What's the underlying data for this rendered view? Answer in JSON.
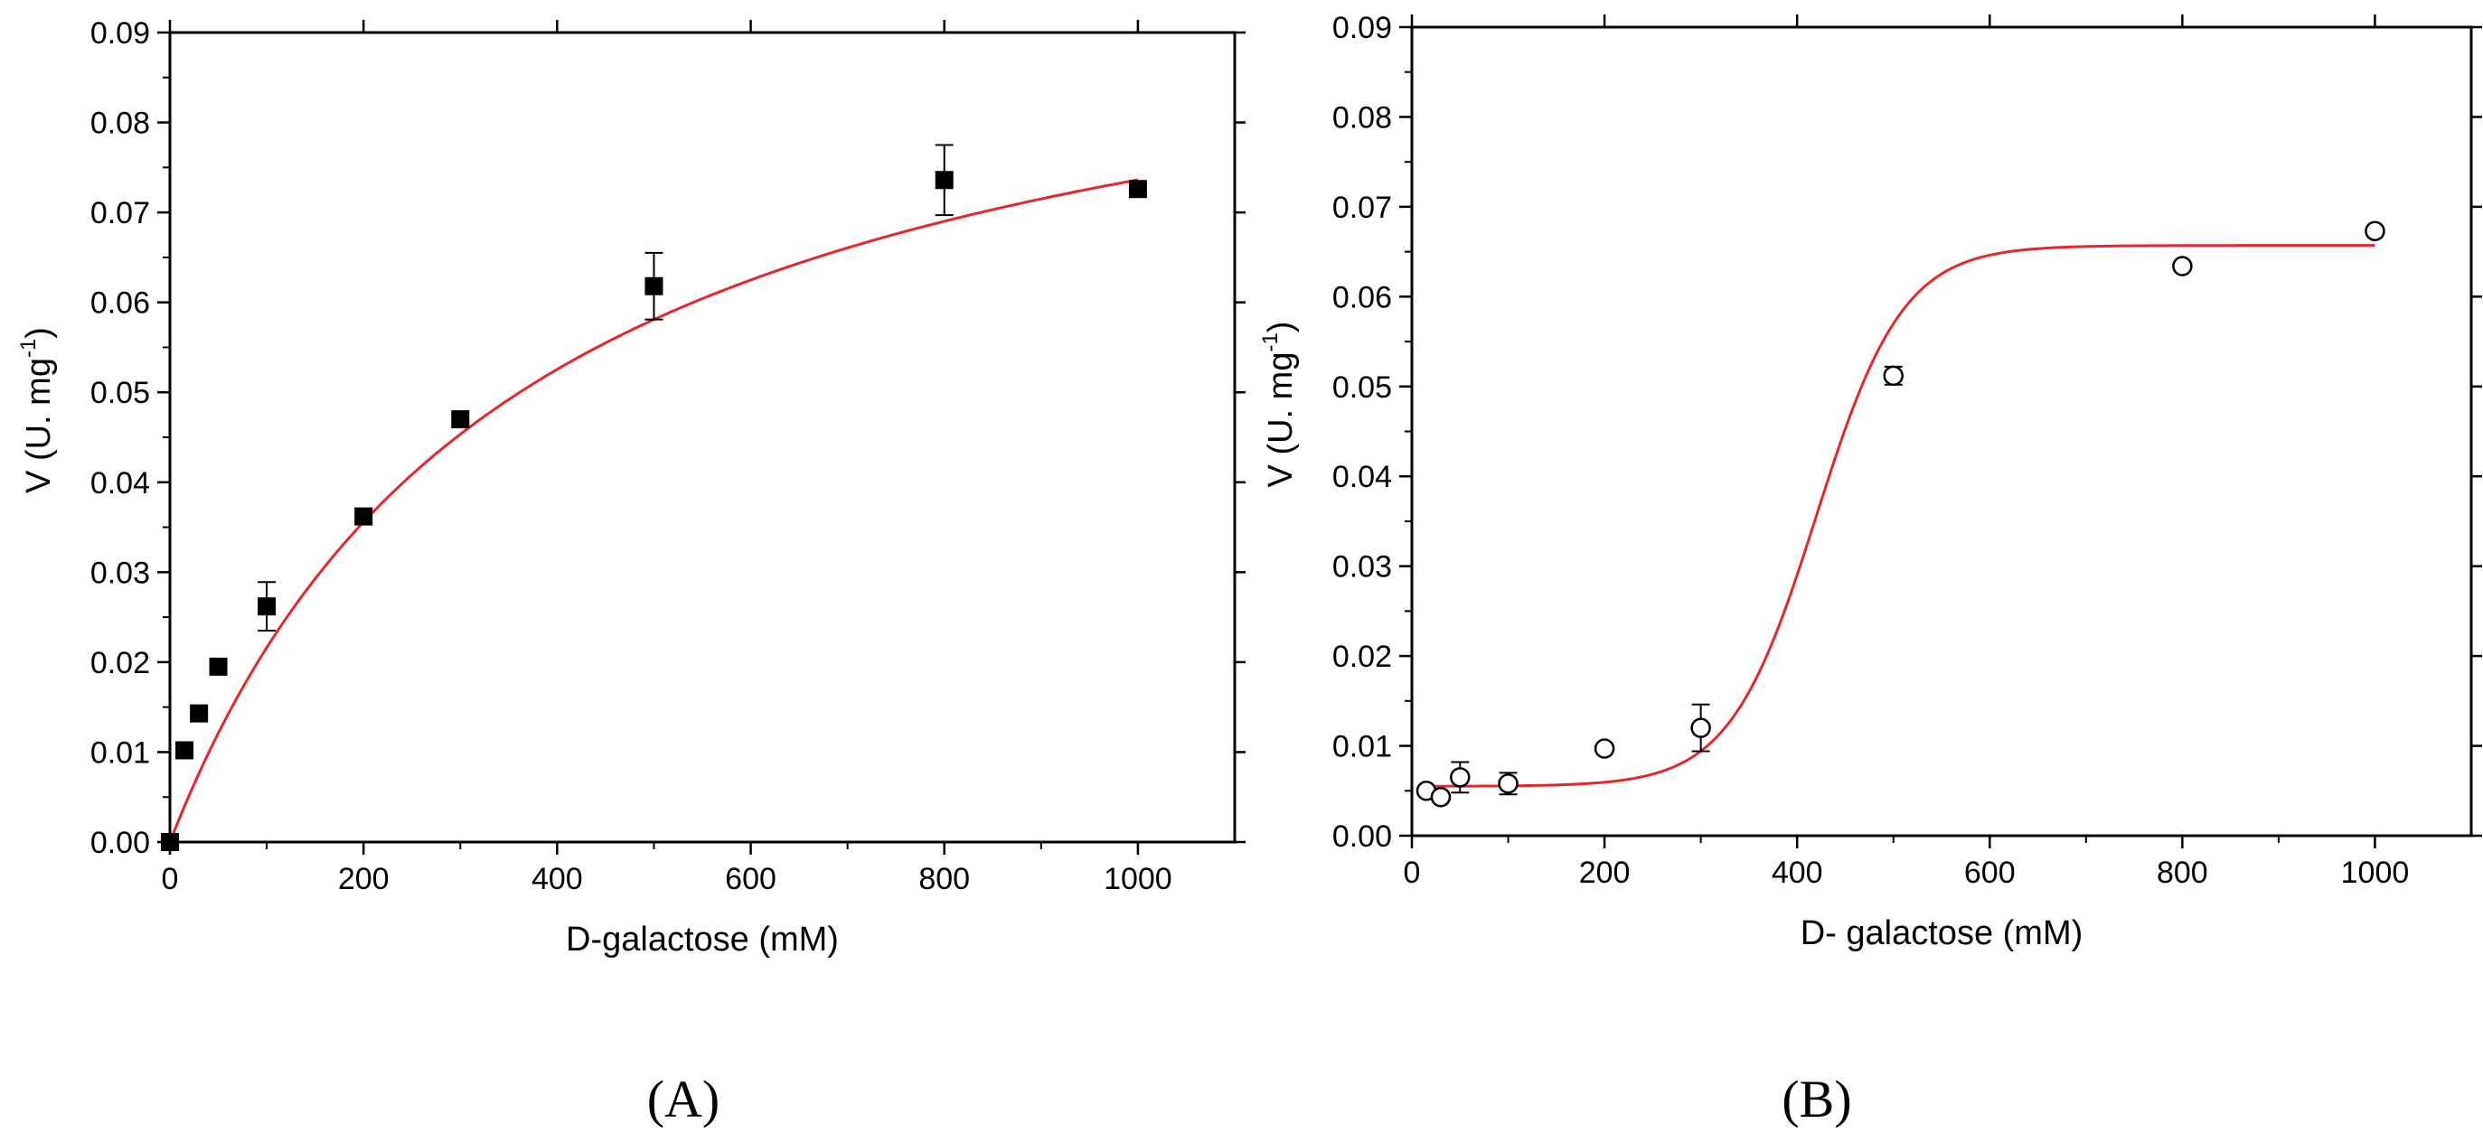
{
  "colors": {
    "fit": "#e8262a",
    "axis": "#000000",
    "marker": "#000000"
  },
  "chart_data": [
    {
      "panel_label": "(A)",
      "type": "scatter",
      "marker": "filled-square",
      "xlabel": "D-galactose (mM)",
      "ylabel_main": "V (U. mg",
      "ylabel_sup": "-1",
      "ylabel_close": ")",
      "xlim": [
        0,
        1100
      ],
      "ylim": [
        0,
        0.09
      ],
      "xticks": [
        0,
        200,
        400,
        600,
        800,
        1000
      ],
      "xtick_labels": [
        "0",
        "200",
        "400",
        "600",
        "800",
        "1000"
      ],
      "yticks": [
        0,
        0.01,
        0.02,
        0.03,
        0.04,
        0.05,
        0.06,
        0.07,
        0.08,
        0.09
      ],
      "ytick_labels": [
        "0.00",
        "0.01",
        "0.02",
        "0.03",
        "0.04",
        "0.05",
        "0.06",
        "0.07",
        "0.08",
        "0.09"
      ],
      "x": [
        0,
        15,
        30,
        50,
        100,
        200,
        300,
        500,
        800,
        1000
      ],
      "y": [
        0.0,
        0.0102,
        0.0143,
        0.0195,
        0.0262,
        0.0362,
        0.047,
        0.0618,
        0.0736,
        0.0726
      ],
      "yerr": [
        0,
        0,
        0,
        0,
        0.0027,
        0,
        0,
        0.0037,
        0.0039,
        0
      ],
      "fit": {
        "model": "michaelis-menten",
        "vmax": 0.1005,
        "km": 365,
        "x_start": 0,
        "x_end": 1000
      }
    },
    {
      "panel_label": "(B)",
      "type": "scatter",
      "marker": "open-circle",
      "xlabel": "D- galactose (mM)",
      "ylabel_main": "V (U. mg",
      "ylabel_sup": "-1",
      "ylabel_close": ")",
      "xlim": [
        0,
        1100
      ],
      "ylim": [
        0,
        0.09
      ],
      "xticks": [
        0,
        200,
        400,
        600,
        800,
        1000
      ],
      "xtick_labels": [
        "0",
        "200",
        "400",
        "600",
        "800",
        "1000"
      ],
      "yticks": [
        0,
        0.01,
        0.02,
        0.03,
        0.04,
        0.05,
        0.06,
        0.07,
        0.08,
        0.09
      ],
      "ytick_labels": [
        "0.00",
        "0.01",
        "0.02",
        "0.03",
        "0.04",
        "0.05",
        "0.06",
        "0.07",
        "0.08",
        "0.09"
      ],
      "x": [
        15,
        30,
        50,
        100,
        200,
        300,
        500,
        800,
        1000
      ],
      "y": [
        0.005,
        0.0043,
        0.0065,
        0.0058,
        0.0097,
        0.012,
        0.0512,
        0.0634,
        0.0673
      ],
      "yerr": [
        0,
        0,
        0.0017,
        0.0012,
        0,
        0.0026,
        0.001,
        0,
        0
      ],
      "fit": {
        "model": "sigmoid",
        "bottom": 0.0055,
        "top": 0.0657,
        "x50": 420,
        "slope": 45,
        "x_start": 15,
        "x_end": 1000
      }
    }
  ]
}
